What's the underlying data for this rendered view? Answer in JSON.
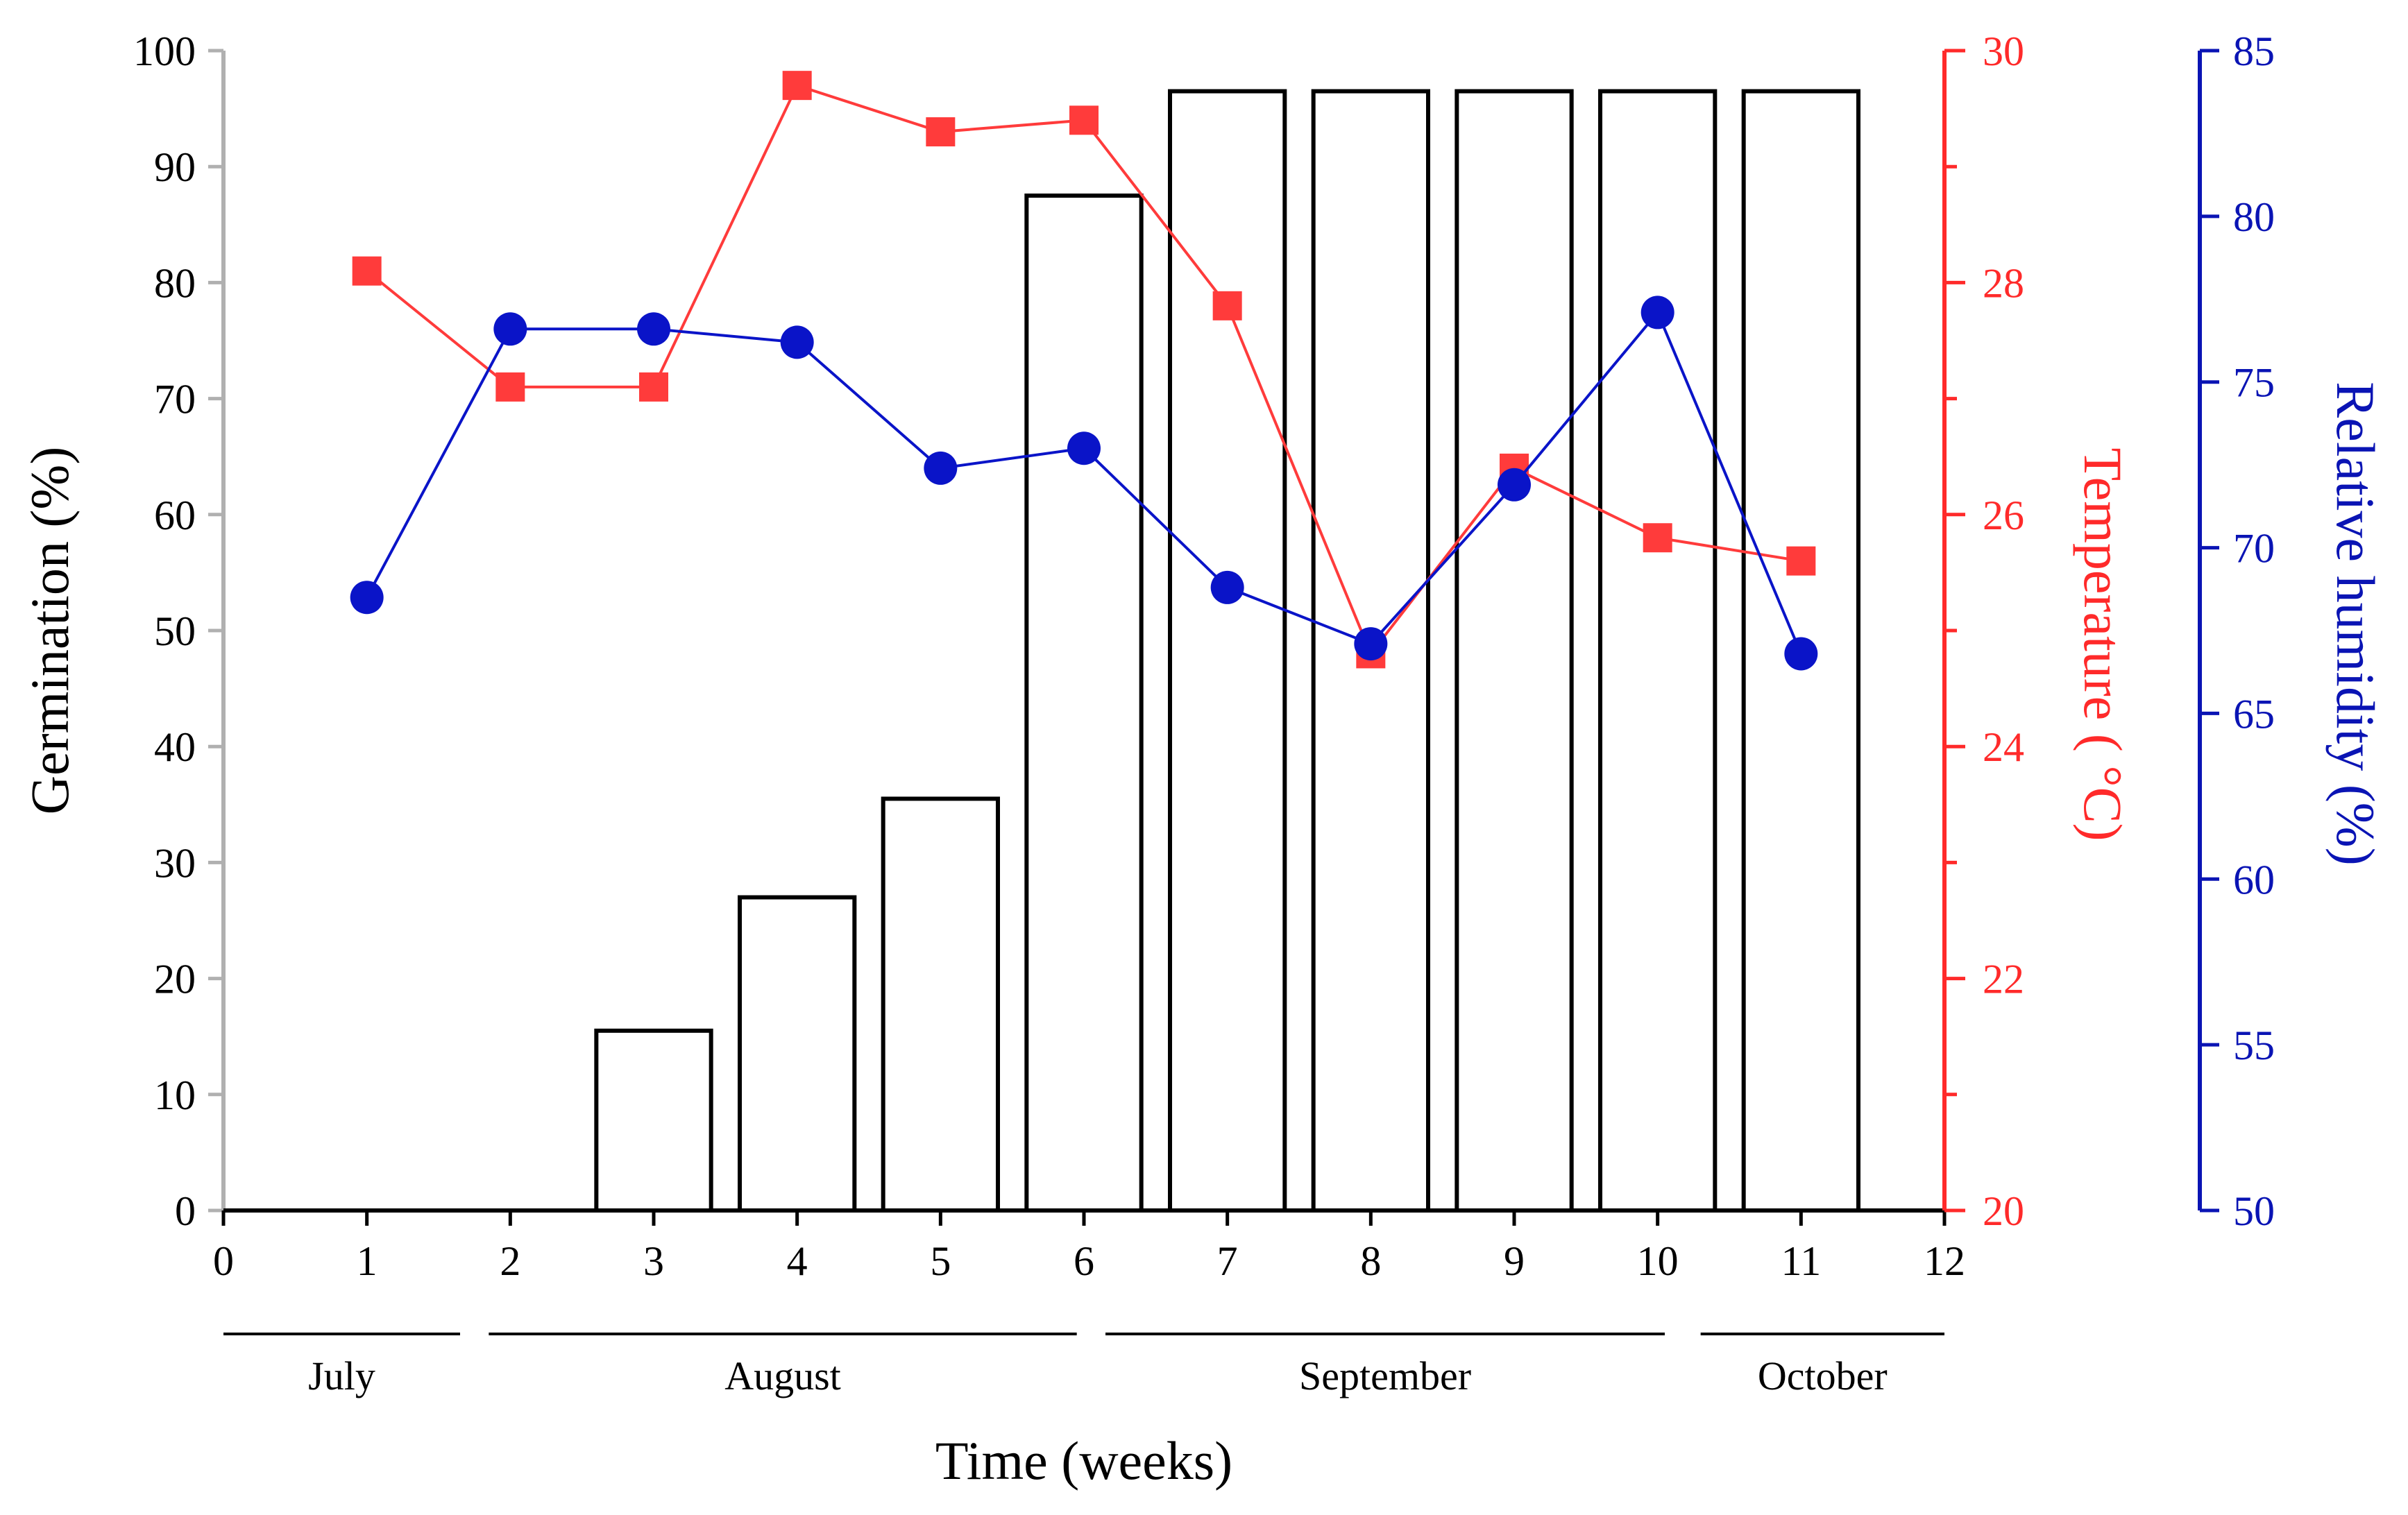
{
  "chart_data": {
    "type": "bar",
    "x": [
      1,
      2,
      3,
      4,
      5,
      6,
      7,
      8,
      9,
      10,
      11
    ],
    "xlim": [
      0,
      12
    ],
    "xticks": [
      "0",
      "1",
      "2",
      "3",
      "4",
      "5",
      "6",
      "7",
      "8",
      "9",
      "10",
      "11",
      "12"
    ],
    "xlabel": "Time (weeks)",
    "months": [
      {
        "label": "July",
        "start": 0,
        "end": 1.65
      },
      {
        "label": "August",
        "start": 1.85,
        "end": 5.95
      },
      {
        "label": "September",
        "start": 6.15,
        "end": 10.05
      },
      {
        "label": "October",
        "start": 10.3,
        "end": 12
      }
    ],
    "series": [
      {
        "name": "Germination",
        "type": "bar",
        "axis": "left",
        "values": [
          0,
          0,
          15.5,
          27,
          35.5,
          87.5,
          96.5,
          96.5,
          96.5,
          96.5,
          96.5
        ],
        "color": "#000000"
      },
      {
        "name": "Temperature",
        "type": "line",
        "marker": "square",
        "axis": "right1",
        "values": [
          28.1,
          27.1,
          27.1,
          29.7,
          29.3,
          29.4,
          27.8,
          24.8,
          26.4,
          25.8,
          25.6
        ],
        "color": "#ff3b3b"
      },
      {
        "name": "Relative humidity",
        "type": "line",
        "marker": "circle",
        "axis": "right2",
        "values": [
          68.5,
          76.6,
          76.6,
          76.2,
          72.4,
          73.0,
          68.8,
          67.1,
          71.9,
          77.1,
          66.8
        ],
        "color": "#0a14c8"
      }
    ],
    "axes": {
      "left": {
        "title": "Germination (%)",
        "ylim": [
          0,
          100
        ],
        "ticks": [
          "0",
          "10",
          "20",
          "30",
          "40",
          "50",
          "60",
          "70",
          "80",
          "90",
          "100"
        ],
        "color": "#000000",
        "line_color": "#b0b0b0"
      },
      "right1": {
        "title": "Temperature ( °C)",
        "ylim": [
          20,
          30
        ],
        "ticks": [
          "20",
          "22",
          "24",
          "26",
          "28",
          "30"
        ],
        "color": "#ff2a2a"
      },
      "right2": {
        "title": "Relative humidity (%)",
        "ylim": [
          50,
          85
        ],
        "ticks": [
          "50",
          "55",
          "60",
          "65",
          "70",
          "75",
          "80",
          "85"
        ],
        "color": "#0a14b4"
      }
    },
    "grid": false
  }
}
